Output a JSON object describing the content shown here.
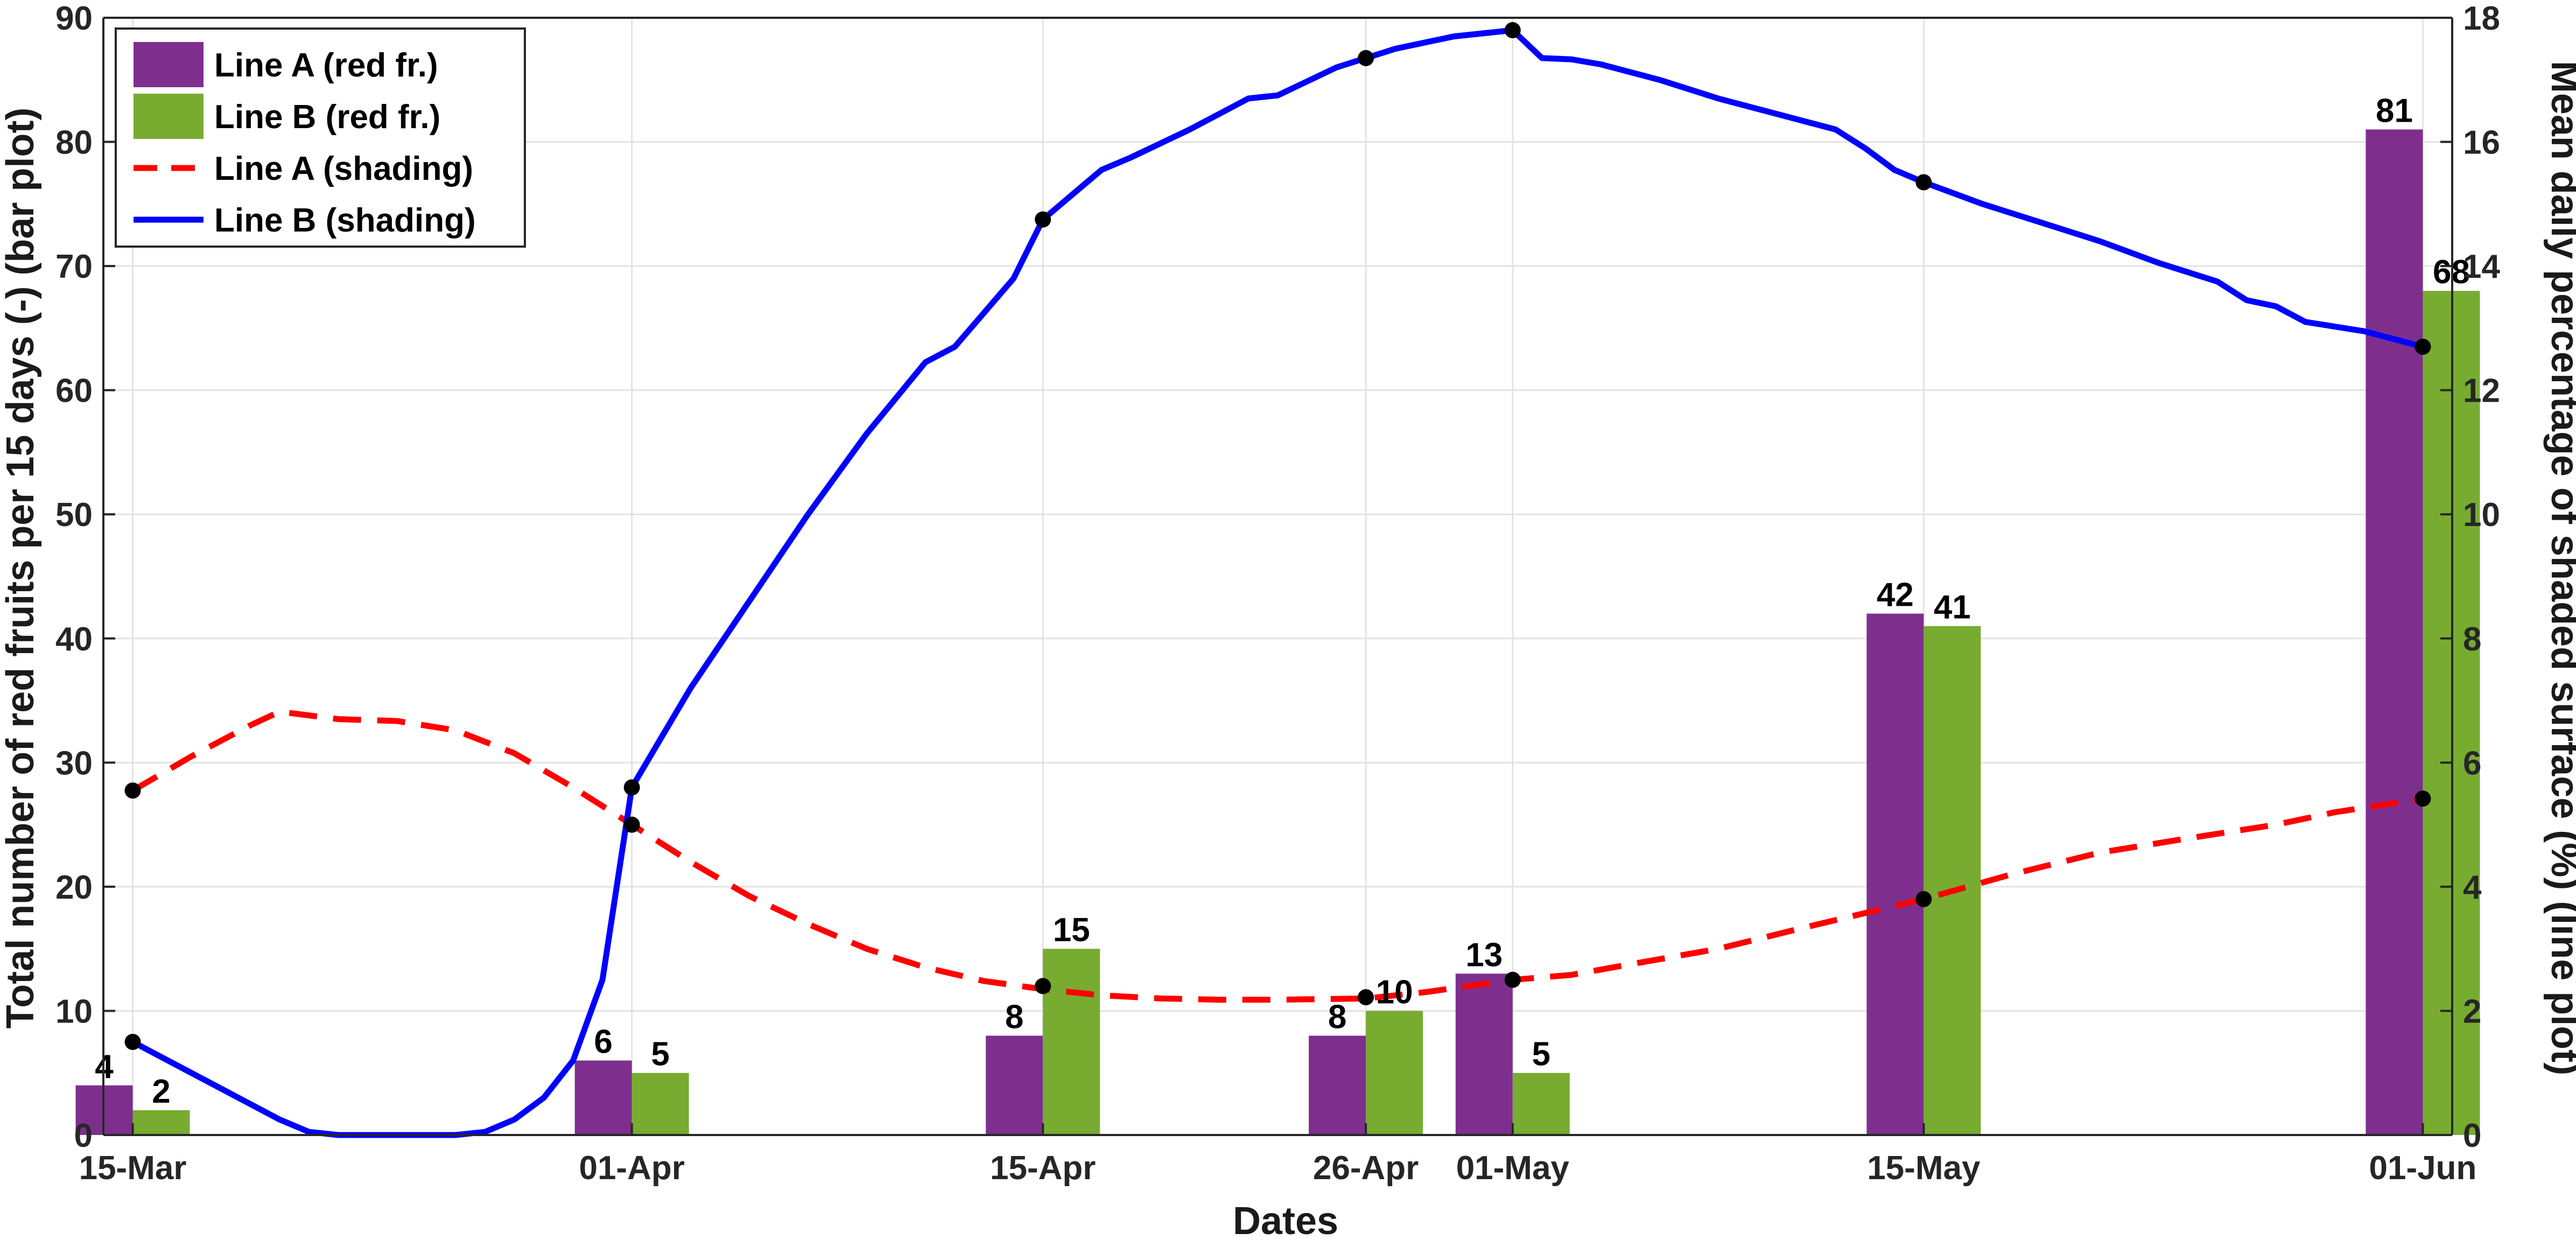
{
  "chart_data": {
    "type": "bar",
    "xlabel": "Dates",
    "ylabel_left": "Total number of red fruits per 15 days (-) (bar plot)",
    "ylabel_right": "Mean daily percentage of shaded surface (%) (line plot)",
    "x_range": [
      "2000-03-14",
      "2000-06-02"
    ],
    "ylim_left": [
      0,
      90
    ],
    "yticks_left": [
      0,
      10,
      20,
      30,
      40,
      50,
      60,
      70,
      80,
      90
    ],
    "ylim_right": [
      0,
      18
    ],
    "yticks_right": [
      0,
      2,
      4,
      6,
      8,
      10,
      12,
      14,
      16,
      18
    ],
    "grid": true,
    "legend_position": "top-left",
    "xticks": [
      {
        "date": "2000-03-15",
        "label": "15-Mar"
      },
      {
        "date": "2000-04-01",
        "label": "01-Apr"
      },
      {
        "date": "2000-04-15",
        "label": "15-Apr"
      },
      {
        "date": "2000-04-26",
        "label": "26-Apr"
      },
      {
        "date": "2000-05-01",
        "label": "01-May"
      },
      {
        "date": "2000-05-15",
        "label": "15-May"
      },
      {
        "date": "2000-06-01",
        "label": "01-Jun"
      }
    ],
    "bar_series": [
      {
        "name": "Line A (red fr.)",
        "color": "#7e2f8e",
        "points": [
          {
            "date": "2000-03-15",
            "value": 4,
            "label": "4"
          },
          {
            "date": "2000-04-01",
            "value": 6,
            "label": "6"
          },
          {
            "date": "2000-04-15",
            "value": 8,
            "label": "8"
          },
          {
            "date": "2000-04-26",
            "value": 8,
            "label": "8"
          },
          {
            "date": "2000-05-01",
            "value": 13,
            "label": "13"
          },
          {
            "date": "2000-05-15",
            "value": 42,
            "label": "42"
          },
          {
            "date": "2000-06-01",
            "value": 81,
            "label": "81"
          }
        ]
      },
      {
        "name": "Line B (red fr.)",
        "color": "#77ac30",
        "points": [
          {
            "date": "2000-03-15",
            "value": 2,
            "label": "2"
          },
          {
            "date": "2000-04-01",
            "value": 5,
            "label": "5"
          },
          {
            "date": "2000-04-15",
            "value": 15,
            "label": "15"
          },
          {
            "date": "2000-04-26",
            "value": 10,
            "label": "10"
          },
          {
            "date": "2000-05-01",
            "value": 5,
            "label": "5"
          },
          {
            "date": "2000-05-15",
            "value": 41,
            "label": "41"
          },
          {
            "date": "2000-06-01",
            "value": 68,
            "label": "68"
          }
        ]
      }
    ],
    "line_series": [
      {
        "name": "Line A (shading)",
        "color": "#ff0000",
        "style": "dashed",
        "axis": "right",
        "points": [
          [
            "2000-03-15",
            5.55
          ],
          [
            "2000-03-17",
            6.1
          ],
          [
            "2000-03-19",
            6.6
          ],
          [
            "2000-03-20",
            6.82
          ],
          [
            "2000-03-22",
            6.7
          ],
          [
            "2000-03-24",
            6.67
          ],
          [
            "2000-03-26",
            6.52
          ],
          [
            "2000-03-28",
            6.15
          ],
          [
            "2000-03-30",
            5.6
          ],
          [
            "2000-04-01",
            5.0
          ],
          [
            "2000-04-03",
            4.4
          ],
          [
            "2000-04-05",
            3.85
          ],
          [
            "2000-04-07",
            3.4
          ],
          [
            "2000-04-09",
            3.0
          ],
          [
            "2000-04-11",
            2.7
          ],
          [
            "2000-04-13",
            2.48
          ],
          [
            "2000-04-15",
            2.35
          ],
          [
            "2000-04-17",
            2.25
          ],
          [
            "2000-04-19",
            2.2
          ],
          [
            "2000-04-21",
            2.18
          ],
          [
            "2000-04-23",
            2.18
          ],
          [
            "2000-04-26",
            2.2
          ],
          [
            "2000-04-28",
            2.3
          ],
          [
            "2000-05-01",
            2.5
          ],
          [
            "2000-05-03",
            2.58
          ],
          [
            "2000-05-05",
            2.75
          ],
          [
            "2000-05-08",
            3.0
          ],
          [
            "2000-05-11",
            3.35
          ],
          [
            "2000-05-15",
            3.8
          ],
          [
            "2000-05-18",
            4.2
          ],
          [
            "2000-05-21",
            4.55
          ],
          [
            "2000-05-24",
            4.78
          ],
          [
            "2000-05-27",
            5.0
          ],
          [
            "2000-05-29",
            5.2
          ],
          [
            "2000-06-01",
            5.42
          ]
        ]
      },
      {
        "name": "Line B (shading)",
        "color": "#0000ff",
        "style": "solid",
        "axis": "right",
        "points": [
          [
            "2000-03-15",
            1.5
          ],
          [
            "2000-03-17",
            1.0
          ],
          [
            "2000-03-19",
            0.5
          ],
          [
            "2000-03-20",
            0.25
          ],
          [
            "2000-03-21",
            0.05
          ],
          [
            "2000-03-22",
            0.0
          ],
          [
            "2000-03-24",
            0.0
          ],
          [
            "2000-03-26",
            0.0
          ],
          [
            "2000-03-27",
            0.05
          ],
          [
            "2000-03-28",
            0.25
          ],
          [
            "2000-03-29",
            0.6
          ],
          [
            "2000-03-30",
            1.2
          ],
          [
            "2000-03-31",
            2.5
          ],
          [
            "2000-04-01",
            5.6
          ],
          [
            "2000-04-03",
            7.2
          ],
          [
            "2000-04-05",
            8.6
          ],
          [
            "2000-04-07",
            10.0
          ],
          [
            "2000-04-09",
            11.3
          ],
          [
            "2000-04-11",
            12.45
          ],
          [
            "2000-04-12",
            12.7
          ],
          [
            "2000-04-14",
            13.8
          ],
          [
            "2000-04-15",
            14.75
          ],
          [
            "2000-04-16",
            15.15
          ],
          [
            "2000-04-17",
            15.55
          ],
          [
            "2000-04-18",
            15.75
          ],
          [
            "2000-04-20",
            16.2
          ],
          [
            "2000-04-22",
            16.7
          ],
          [
            "2000-04-23",
            16.75
          ],
          [
            "2000-04-25",
            17.2
          ],
          [
            "2000-04-26",
            17.35
          ],
          [
            "2000-04-27",
            17.5
          ],
          [
            "2000-04-29",
            17.7
          ],
          [
            "2000-05-01",
            17.8
          ],
          [
            "2000-05-02",
            17.35
          ],
          [
            "2000-05-03",
            17.33
          ],
          [
            "2000-05-04",
            17.25
          ],
          [
            "2000-05-06",
            17.0
          ],
          [
            "2000-05-08",
            16.7
          ],
          [
            "2000-05-10",
            16.45
          ],
          [
            "2000-05-12",
            16.2
          ],
          [
            "2000-05-13",
            15.9
          ],
          [
            "2000-05-14",
            15.55
          ],
          [
            "2000-05-15",
            15.35
          ],
          [
            "2000-05-17",
            15.0
          ],
          [
            "2000-05-19",
            14.7
          ],
          [
            "2000-05-21",
            14.4
          ],
          [
            "2000-05-23",
            14.05
          ],
          [
            "2000-05-25",
            13.75
          ],
          [
            "2000-05-26",
            13.45
          ],
          [
            "2000-05-27",
            13.35
          ],
          [
            "2000-05-28",
            13.1
          ],
          [
            "2000-05-30",
            12.95
          ],
          [
            "2000-06-01",
            12.7
          ]
        ]
      }
    ],
    "markers": {
      "color": "#000000",
      "points": [
        {
          "date": "2000-03-15",
          "value": 5.55
        },
        {
          "date": "2000-03-15",
          "value": 1.5
        },
        {
          "date": "2000-04-01",
          "value": 5.6
        },
        {
          "date": "2000-04-01",
          "value": 5.0
        },
        {
          "date": "2000-04-15",
          "value": 14.75
        },
        {
          "date": "2000-04-15",
          "value": 2.4
        },
        {
          "date": "2000-04-26",
          "value": 17.35
        },
        {
          "date": "2000-04-26",
          "value": 2.22
        },
        {
          "date": "2000-05-01",
          "value": 17.8
        },
        {
          "date": "2000-05-01",
          "value": 2.5
        },
        {
          "date": "2000-05-15",
          "value": 15.35
        },
        {
          "date": "2000-05-15",
          "value": 3.8
        },
        {
          "date": "2000-06-01",
          "value": 12.7
        },
        {
          "date": "2000-06-01",
          "value": 5.42
        }
      ]
    }
  }
}
